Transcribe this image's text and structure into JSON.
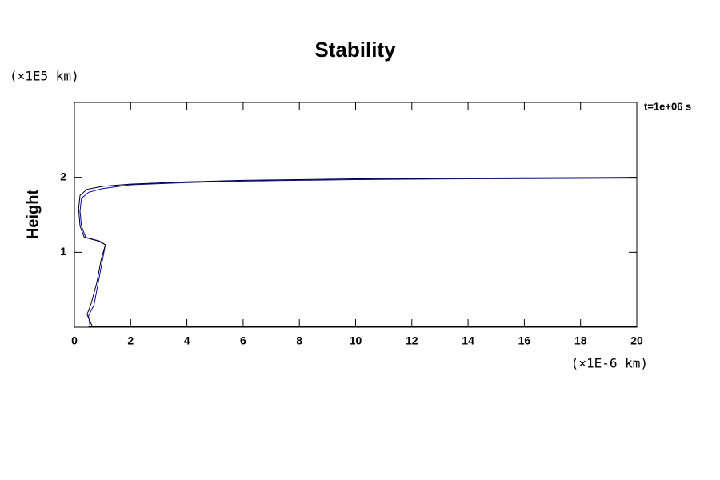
{
  "chart_data": {
    "type": "line",
    "title": "Stability",
    "y_unit": "(×1E5 km)",
    "ylabel": "Height",
    "x_unit": "(×1E-6 km)",
    "annotation": "t=1e+06 s",
    "xlim": [
      0,
      20
    ],
    "ylim": [
      0,
      3
    ],
    "xticks": [
      0,
      2,
      4,
      6,
      8,
      10,
      12,
      14,
      16,
      18,
      20
    ],
    "yticks": [
      1,
      2
    ],
    "series": [
      {
        "color": "#0000cc",
        "x": [
          0.55,
          0.5,
          0.7,
          0.85,
          1.0,
          1.1,
          0.9,
          0.4,
          0.25,
          0.2,
          0.25,
          0.5,
          1.0,
          2.0,
          4.0,
          6.0,
          10.0,
          14.0,
          20.0
        ],
        "values": [
          0.03,
          0.15,
          0.3,
          0.6,
          0.9,
          1.1,
          1.15,
          1.2,
          1.35,
          1.55,
          1.72,
          1.8,
          1.85,
          1.9,
          1.93,
          1.95,
          1.97,
          1.98,
          1.99
        ]
      },
      {
        "color": "#000000",
        "x": [
          0.65,
          0.45,
          0.6,
          0.8,
          0.95,
          1.1,
          0.85,
          0.35,
          0.2,
          0.15,
          0.2,
          0.45,
          1.0,
          2.0,
          4.0,
          6.0,
          10.0,
          14.0,
          20.0
        ],
        "values": [
          0.0,
          0.17,
          0.32,
          0.6,
          0.9,
          1.1,
          1.15,
          1.2,
          1.35,
          1.58,
          1.76,
          1.84,
          1.88,
          1.91,
          1.94,
          1.96,
          1.98,
          1.99,
          2.0
        ]
      },
      {
        "color": "#000000",
        "x": [
          0.5,
          5.0,
          10.0,
          15.0,
          20.0
        ],
        "values": [
          0.01,
          0.01,
          0.01,
          0.01,
          0.01
        ]
      }
    ]
  }
}
